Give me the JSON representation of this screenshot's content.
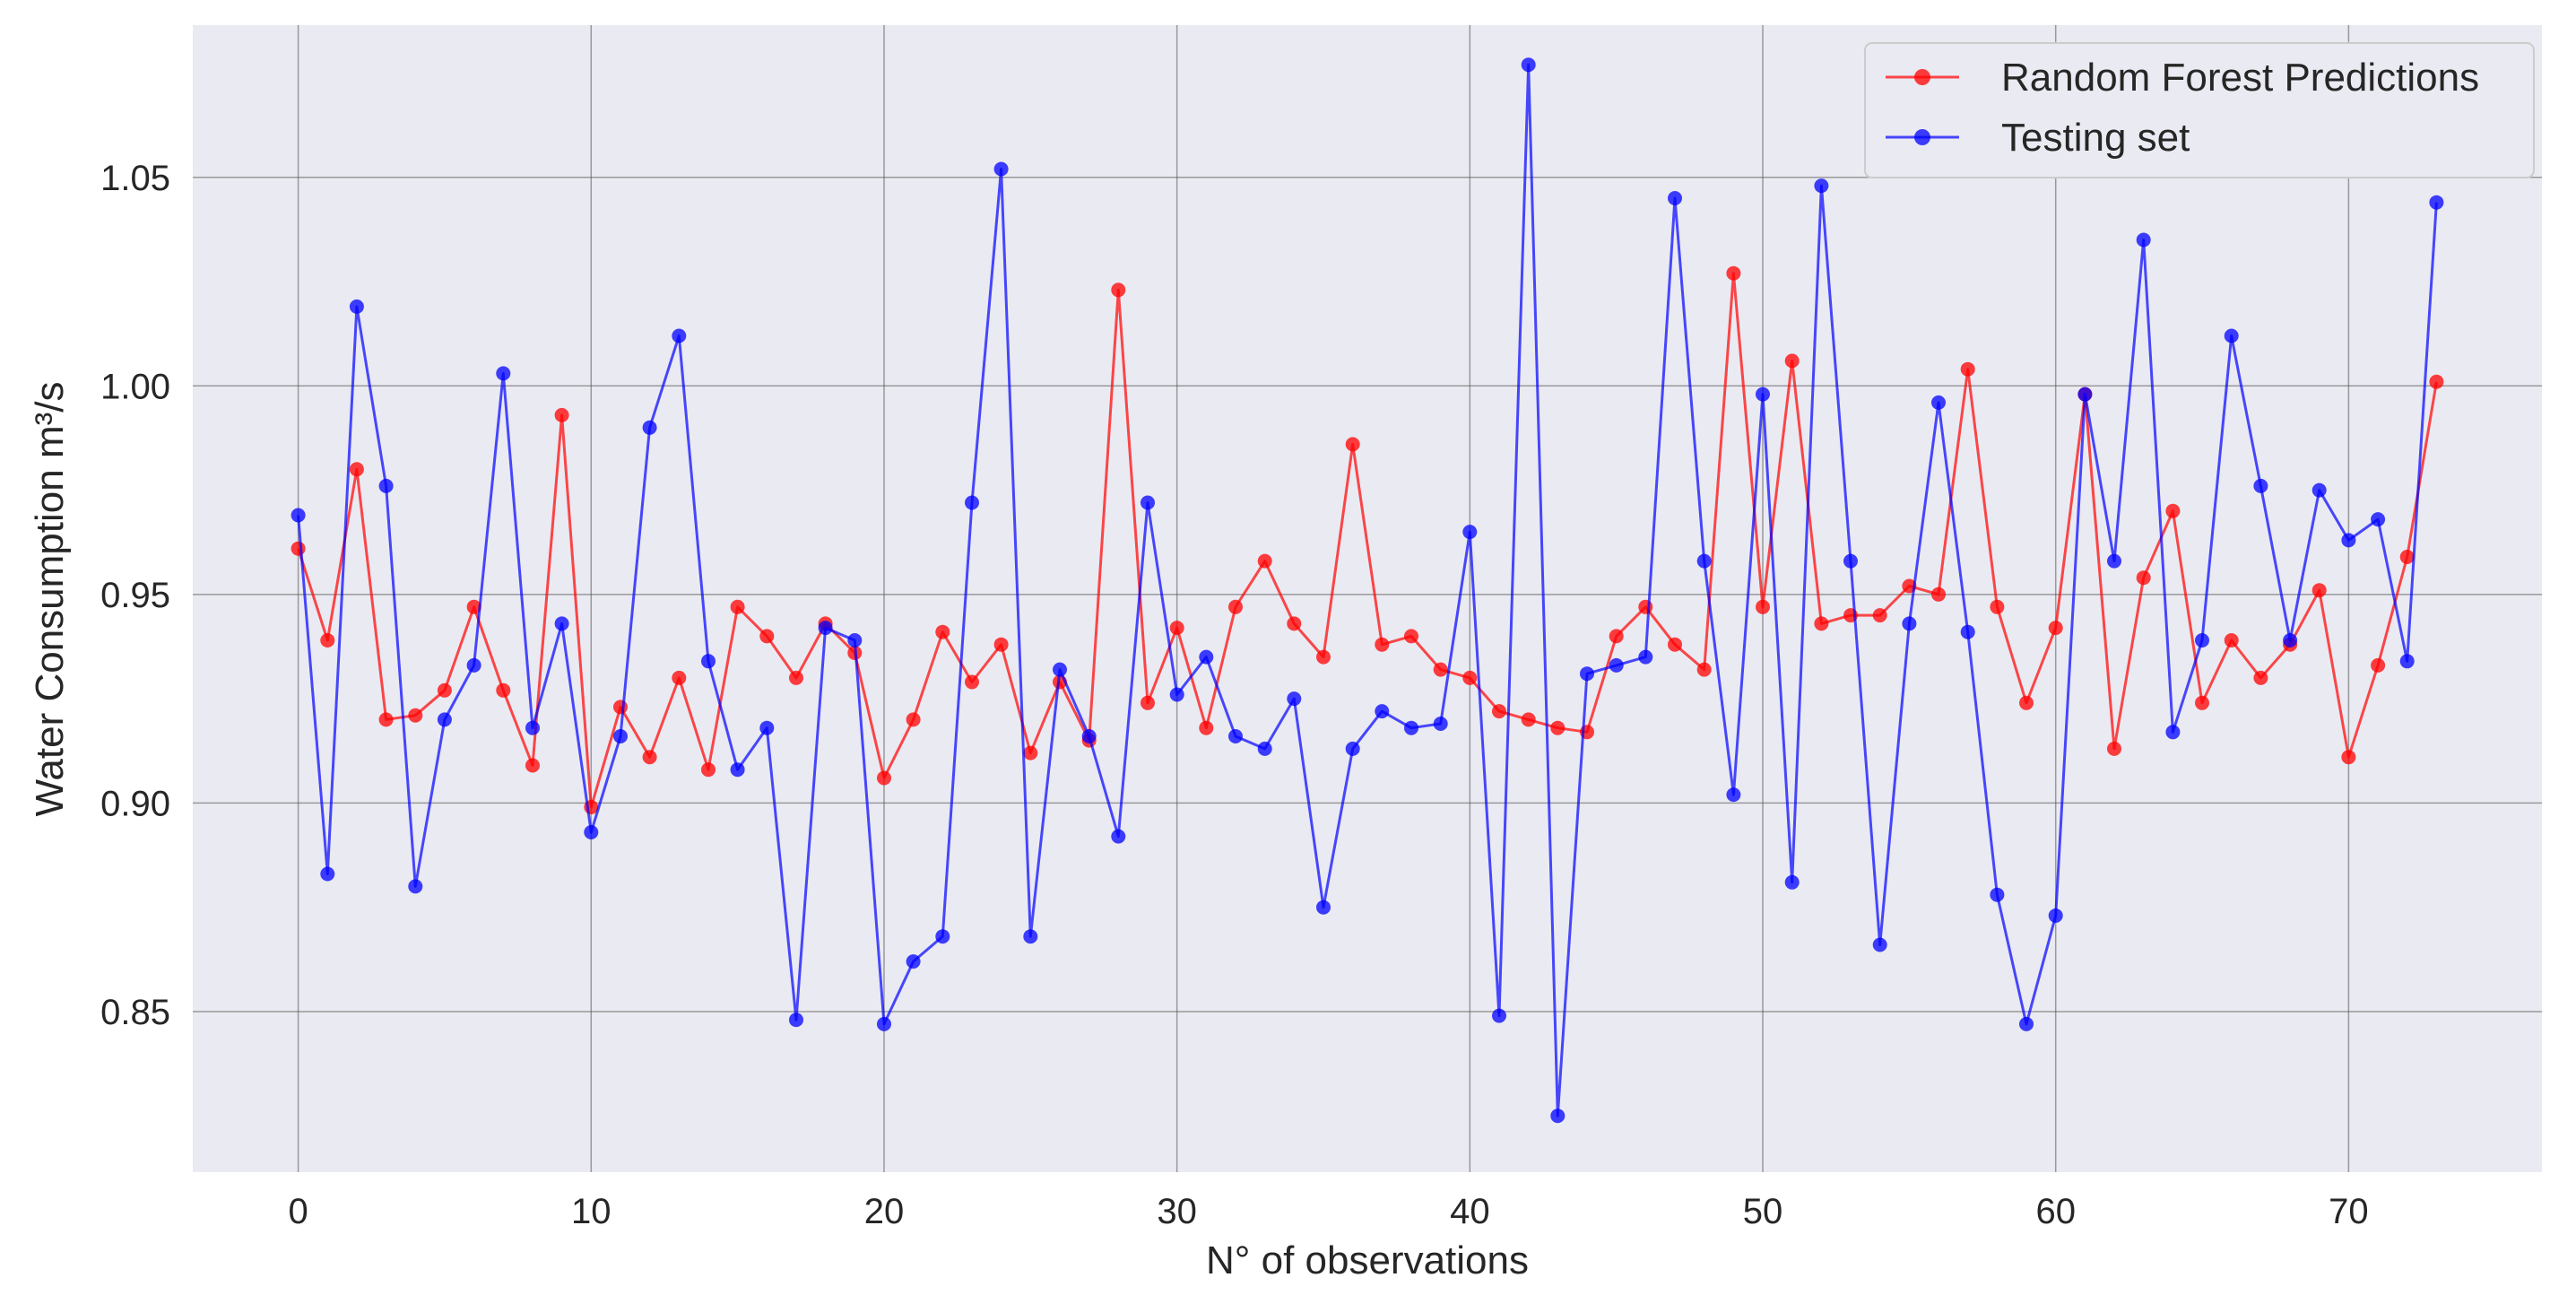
{
  "chart_data": {
    "type": "line",
    "xlabel": "N° of observations",
    "ylabel": "Water Consumption m³/s",
    "xlim": [
      -3.6,
      76.6
    ],
    "ylim": [
      0.8115,
      1.0865
    ],
    "xticks": [
      0,
      10,
      20,
      30,
      40,
      50,
      60,
      70
    ],
    "yticks": [
      0.85,
      0.9,
      0.95,
      1.0,
      1.05
    ],
    "ytick_labels": [
      "0.85",
      "0.90",
      "0.95",
      "1.00",
      "1.05"
    ],
    "grid": true,
    "legend_position": "top-right",
    "background": "#eaeaf2",
    "series": [
      {
        "name": "Random Forest Predictions",
        "color": "#ff0000",
        "values": [
          0.961,
          0.939,
          0.98,
          0.92,
          0.921,
          0.927,
          0.947,
          0.927,
          0.909,
          0.993,
          0.899,
          0.923,
          0.911,
          0.93,
          0.908,
          0.947,
          0.94,
          0.93,
          0.943,
          0.936,
          0.906,
          0.92,
          0.941,
          0.929,
          0.938,
          0.912,
          0.929,
          0.915,
          1.023,
          0.924,
          0.942,
          0.918,
          0.947,
          0.958,
          0.943,
          0.935,
          0.986,
          0.938,
          0.94,
          0.932,
          0.93,
          0.922,
          0.92,
          0.918,
          0.917,
          0.94,
          0.947,
          0.938,
          0.932,
          1.027,
          0.947,
          1.006,
          0.943,
          0.945,
          0.945,
          0.952,
          0.95,
          1.004,
          0.947,
          0.924,
          0.942,
          0.998,
          0.913,
          0.954,
          0.97,
          0.924,
          0.939,
          0.93,
          0.938,
          0.951,
          0.911,
          0.933,
          0.959,
          1.001
        ]
      },
      {
        "name": "Testing set",
        "color": "#0000ff",
        "values": [
          0.969,
          0.883,
          1.019,
          0.976,
          0.88,
          0.92,
          0.933,
          1.003,
          0.918,
          0.943,
          0.893,
          0.916,
          0.99,
          1.012,
          0.934,
          0.908,
          0.918,
          0.848,
          0.942,
          0.939,
          0.847,
          0.862,
          0.868,
          0.972,
          1.052,
          0.868,
          0.932,
          0.916,
          0.892,
          0.972,
          0.926,
          0.935,
          0.916,
          0.913,
          0.925,
          0.875,
          0.913,
          0.922,
          0.918,
          0.919,
          0.965,
          0.849,
          1.077,
          0.825,
          0.931,
          0.933,
          0.935,
          1.045,
          0.958,
          0.902,
          0.998,
          0.881,
          1.048,
          0.958,
          0.866,
          0.943,
          0.996,
          0.941,
          0.878,
          0.847,
          0.873,
          0.998,
          0.958,
          1.035,
          0.917,
          0.939,
          1.012,
          0.976,
          0.939,
          0.975,
          0.963,
          0.968,
          0.934,
          1.044
        ]
      }
    ]
  }
}
